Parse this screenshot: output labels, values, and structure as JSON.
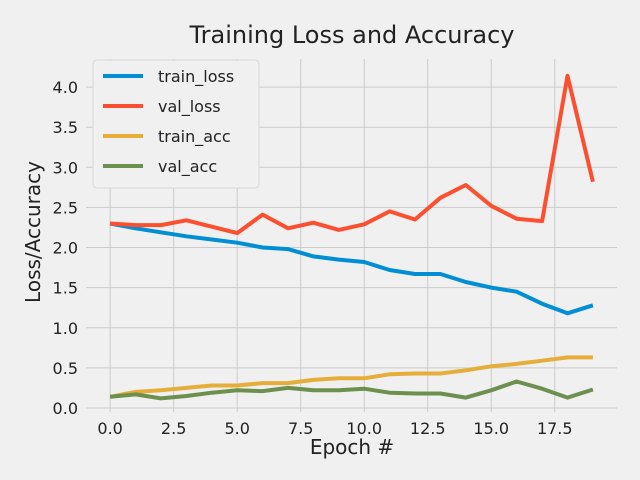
{
  "chart_data": {
    "type": "line",
    "title": "Training Loss and Accuracy",
    "xlabel": "Epoch #",
    "ylabel": "Loss/Accuracy",
    "xlim": [
      -0.95,
      19.95
    ],
    "ylim": [
      -0.05,
      4.35
    ],
    "xticks": [
      0,
      2.5,
      5,
      7.5,
      10,
      12.5,
      15,
      17.5
    ],
    "xtick_labels": [
      "0.0",
      "2.5",
      "5.0",
      "7.5",
      "10.0",
      "12.5",
      "15.0",
      "17.5"
    ],
    "yticks": [
      0,
      0.5,
      1,
      1.5,
      2,
      2.5,
      3,
      3.5,
      4
    ],
    "ytick_labels": [
      "0.0",
      "0.5",
      "1.0",
      "1.5",
      "2.0",
      "2.5",
      "3.0",
      "3.5",
      "4.0"
    ],
    "grid": true,
    "legend_position": "top-left",
    "x": [
      0,
      1,
      2,
      3,
      4,
      5,
      6,
      7,
      8,
      9,
      10,
      11,
      12,
      13,
      14,
      15,
      16,
      17,
      18,
      19
    ],
    "series": [
      {
        "name": "train_loss",
        "color": "#008fd5",
        "values": [
          2.3,
          2.24,
          2.19,
          2.14,
          2.1,
          2.06,
          2.0,
          1.98,
          1.89,
          1.85,
          1.82,
          1.72,
          1.67,
          1.67,
          1.57,
          1.5,
          1.45,
          1.3,
          1.18,
          1.28
        ]
      },
      {
        "name": "val_loss",
        "color": "#fc4f30",
        "values": [
          2.3,
          2.28,
          2.28,
          2.34,
          2.26,
          2.18,
          2.41,
          2.24,
          2.31,
          2.22,
          2.29,
          2.45,
          2.35,
          2.62,
          2.78,
          2.52,
          2.36,
          2.33,
          4.14,
          2.82
        ]
      },
      {
        "name": "train_acc",
        "color": "#e5ae38",
        "values": [
          0.14,
          0.2,
          0.22,
          0.25,
          0.28,
          0.28,
          0.31,
          0.31,
          0.35,
          0.37,
          0.37,
          0.42,
          0.43,
          0.43,
          0.47,
          0.52,
          0.55,
          0.59,
          0.63,
          0.63
        ]
      },
      {
        "name": "val_acc",
        "color": "#6d904f",
        "values": [
          0.14,
          0.17,
          0.12,
          0.15,
          0.19,
          0.22,
          0.21,
          0.25,
          0.22,
          0.22,
          0.24,
          0.19,
          0.18,
          0.18,
          0.13,
          0.22,
          0.33,
          0.24,
          0.13,
          0.23
        ]
      }
    ]
  }
}
